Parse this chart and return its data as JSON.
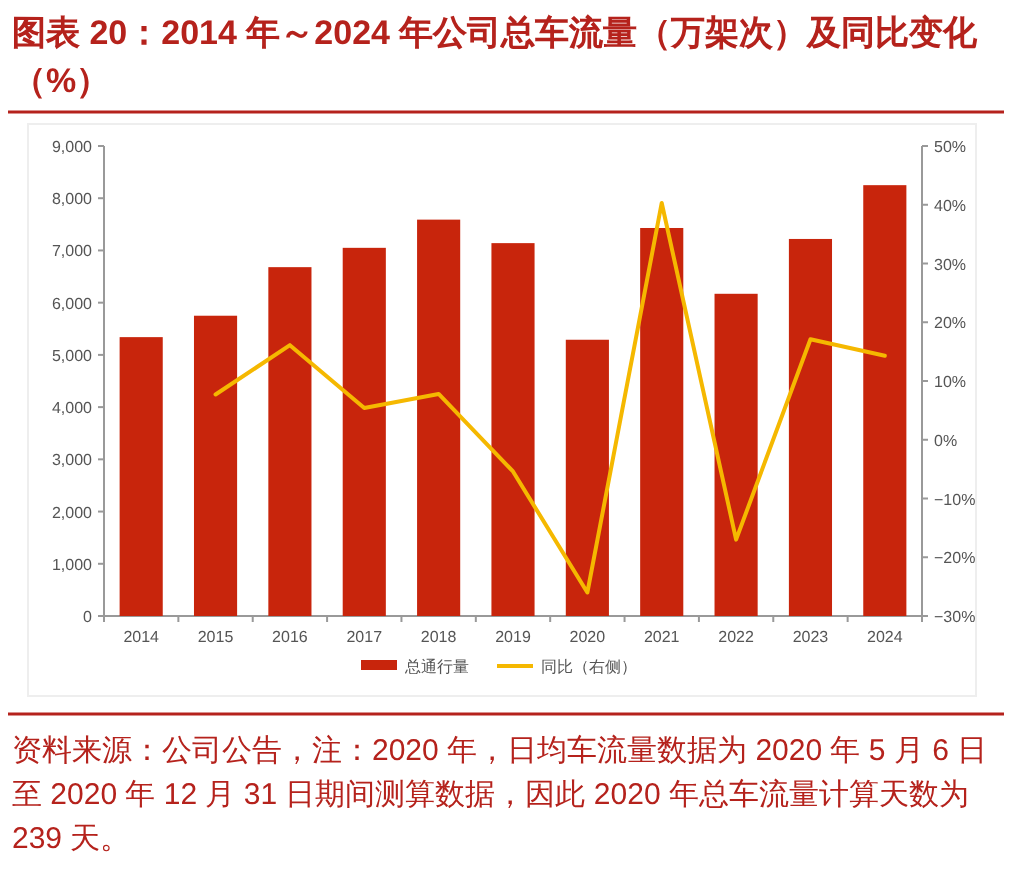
{
  "chart_data": {
    "type": "bar",
    "title": "图表 20：2014 年～2024 年公司总车流量（万架次）及同比变化（%）",
    "annotations": [
      "资料来源：公司公告，注：2020 年，日均车流量数据为 2020 年 5 月 6 日至 2020 年 12 月 31 日期间测算数据，因此 2020 年总车流量计算天数为 239 天。"
    ],
    "categories": [
      "2014",
      "2015",
      "2016",
      "2017",
      "2018",
      "2019",
      "2020",
      "2021",
      "2022",
      "2023",
      "2024"
    ],
    "series": [
      {
        "name": "总通行量",
        "color": "#c8250c",
        "values": [
          5340,
          5750,
          6680,
          7050,
          7590,
          7140,
          5290,
          7430,
          6170,
          7220,
          8250
        ]
      },
      {
        "name": "同比（右侧）",
        "type": "line",
        "axis": "y2",
        "color": "#f5b800",
        "values": [
          null,
          7.7,
          16.1,
          5.4,
          7.8,
          -5.4,
          -26,
          40.3,
          -17,
          17.1,
          14.3
        ]
      }
    ],
    "ylim": [
      0,
      9000
    ],
    "yticks": [
      0,
      {
        "value": 1000,
        "label": "1,000"
      },
      {
        "value": 2000,
        "label": "2,000"
      },
      {
        "value": 3000,
        "label": "3,000"
      },
      {
        "value": 4000,
        "label": "4,000"
      },
      {
        "value": 5000,
        "label": "5,000"
      },
      {
        "value": 6000,
        "label": "6,000"
      },
      {
        "value": 7000,
        "label": "7,000"
      },
      {
        "value": 8000,
        "label": "8,000"
      },
      {
        "value": 9000,
        "label": "9,000"
      }
    ],
    "y2lim": [
      -30,
      50
    ],
    "y2ticks": [
      {
        "value": -30,
        "label": "−30%"
      },
      {
        "value": -20,
        "label": "−20%"
      },
      {
        "value": -10,
        "label": "−10%"
      },
      {
        "value": 0,
        "label": "0%"
      },
      {
        "value": 10,
        "label": "10%"
      },
      {
        "value": 20,
        "label": "20%"
      },
      {
        "value": 30,
        "label": "30%"
      },
      {
        "value": 40,
        "label": "40%"
      },
      {
        "value": 50,
        "label": "50%"
      }
    ],
    "legend": "bottom"
  }
}
